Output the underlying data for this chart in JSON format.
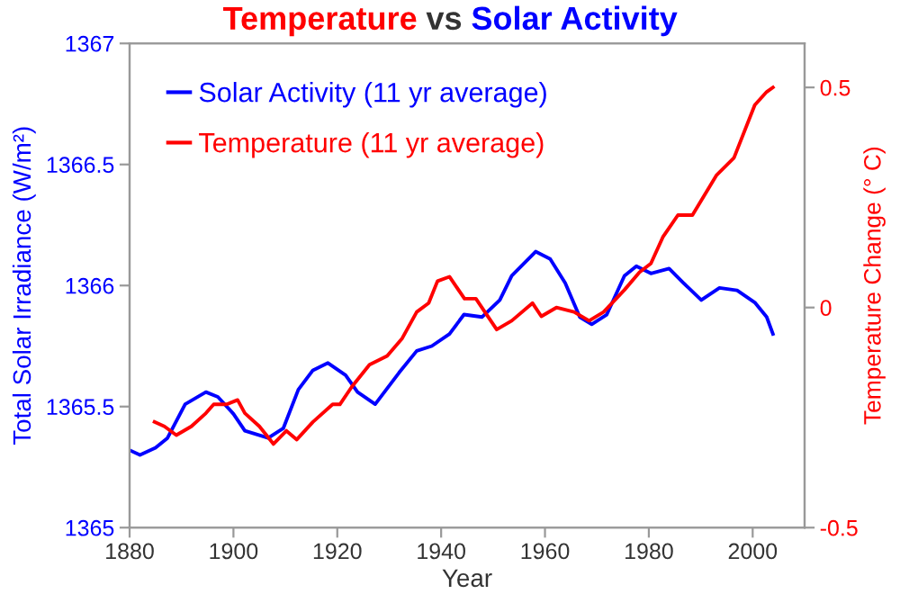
{
  "chart_data": {
    "type": "line",
    "title": "Temperature vs Solar Activity",
    "xlabel": "Year",
    "ylabel": "Total Solar Irradiance (W/m²)",
    "y2label": "Temperature Change (° C)",
    "legend": "top left",
    "grid": false,
    "marker": "none",
    "line_style": "solid",
    "xlim": [
      1880,
      2010
    ],
    "xticks": [
      1880,
      1900,
      1920,
      1940,
      1960,
      1980,
      2000
    ],
    "ylim": [
      1365,
      1367
    ],
    "yticks": [
      1365,
      1365.5,
      1366,
      1366.5,
      1367
    ],
    "y2lim": [
      -0.5,
      0.6
    ],
    "y2ticks": [
      -0.5,
      0,
      0.5
    ],
    "series": [
      {
        "name": "Solar Activity (11 yr average)",
        "color": "#0000ff",
        "x": [
          1880,
          1882,
          1885,
          1887.3,
          1890.7,
          1894.7,
          1897,
          1900,
          1902.2,
          1906.7,
          1909.6,
          1912.5,
          1915.3,
          1918.2,
          1921.6,
          1923.9,
          1927.3,
          1931.9,
          1935.3,
          1938.2,
          1941.6,
          1944.4,
          1947.9,
          1951.3,
          1953.6,
          1958.2,
          1961,
          1963.9,
          1966.7,
          1969,
          1971.9,
          1975.3,
          1977.6,
          1980.4,
          1983.9,
          1986.7,
          1990.1,
          1993.6,
          1997,
          2000.4,
          2002.7,
          2003.9
        ],
        "values": [
          1365.32,
          1365.3,
          1365.33,
          1365.37,
          1365.51,
          1365.56,
          1365.54,
          1365.47,
          1365.4,
          1365.37,
          1365.41,
          1365.57,
          1365.65,
          1365.68,
          1365.63,
          1365.56,
          1365.51,
          1365.64,
          1365.73,
          1365.75,
          1365.8,
          1365.88,
          1365.87,
          1365.94,
          1366.04,
          1366.14,
          1366.11,
          1366.01,
          1365.87,
          1365.84,
          1365.88,
          1366.04,
          1366.08,
          1366.05,
          1366.07,
          1366.01,
          1365.94,
          1365.99,
          1365.98,
          1365.93,
          1365.87,
          1365.8
        ]
      },
      {
        "name": "Temperature (11 yr average)",
        "color": "#ff0000",
        "axis": "y2",
        "x": [
          1884.8,
          1886.7,
          1889,
          1891.9,
          1894.7,
          1896.2,
          1898.7,
          1900.8,
          1902.2,
          1905,
          1907.7,
          1910.2,
          1912.2,
          1915.3,
          1919.1,
          1920.5,
          1922.8,
          1926.2,
          1929.6,
          1932.5,
          1935.3,
          1937.6,
          1939.3,
          1941.6,
          1944.5,
          1946.7,
          1950.7,
          1953.6,
          1957.6,
          1959.3,
          1962.2,
          1965.6,
          1968.5,
          1971.3,
          1975.3,
          1978.2,
          1980.4,
          1982.7,
          1985.6,
          1988.4,
          1993,
          1996.4,
          2000.4,
          2002.7,
          2003.9
        ],
        "values": [
          -0.26,
          -0.27,
          -0.29,
          -0.27,
          -0.24,
          -0.22,
          -0.22,
          -0.21,
          -0.24,
          -0.27,
          -0.31,
          -0.28,
          -0.3,
          -0.26,
          -0.22,
          -0.22,
          -0.18,
          -0.13,
          -0.11,
          -0.07,
          -0.01,
          0.01,
          0.06,
          0.07,
          0.02,
          0.02,
          -0.05,
          -0.03,
          0.01,
          -0.02,
          0.0,
          -0.01,
          -0.03,
          -0.01,
          0.04,
          0.08,
          0.1,
          0.16,
          0.21,
          0.21,
          0.3,
          0.34,
          0.46,
          0.49,
          0.5
        ]
      }
    ]
  }
}
